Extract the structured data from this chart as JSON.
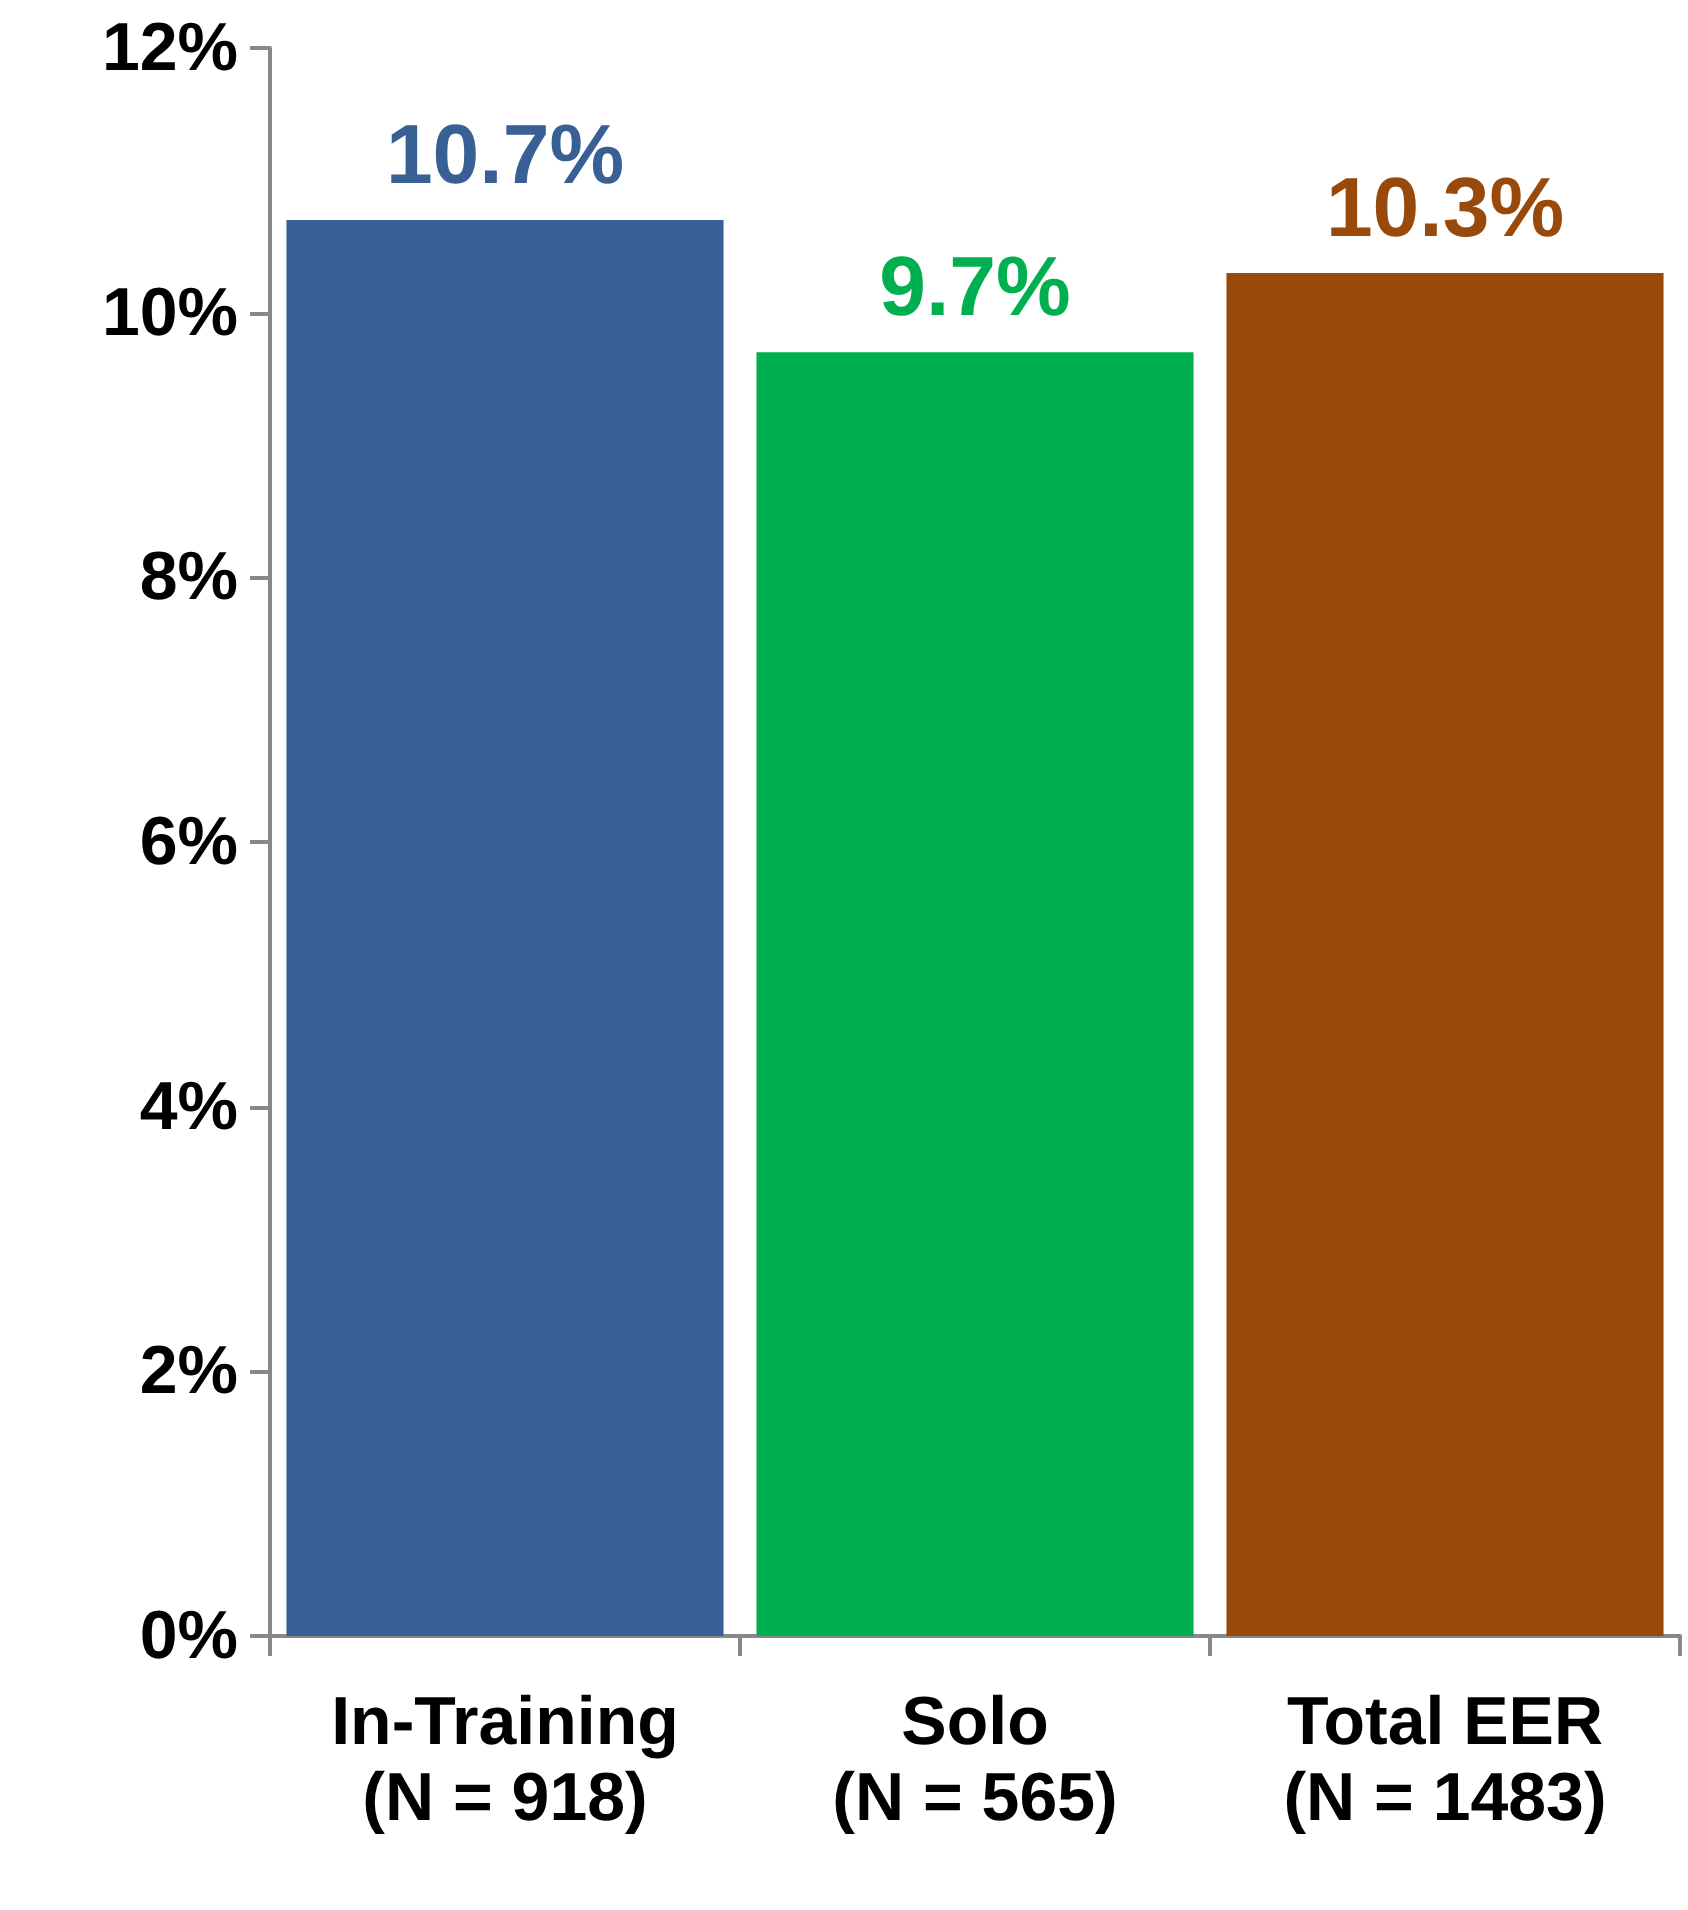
{
  "chart_data": {
    "type": "bar",
    "categories": [
      "In-Training\n(N = 918)",
      "Solo\n(N = 565)",
      "Total EER\n(N = 1483)"
    ],
    "values": [
      10.7,
      9.7,
      10.3
    ],
    "colors": [
      "#386094",
      "#00b050",
      "#994a0a"
    ],
    "value_labels": [
      "10.7%",
      "9.7%",
      "10.3%"
    ],
    "ylim": [
      0,
      12
    ],
    "yticks": [
      {
        "value": 0,
        "label": "0%"
      },
      {
        "value": 2,
        "label": "2%"
      },
      {
        "value": 4,
        "label": "4%"
      },
      {
        "value": 6,
        "label": "6%"
      },
      {
        "value": 8,
        "label": "8%"
      },
      {
        "value": 10,
        "label": "10%"
      },
      {
        "value": 12,
        "label": "12%"
      }
    ],
    "grid": false
  }
}
